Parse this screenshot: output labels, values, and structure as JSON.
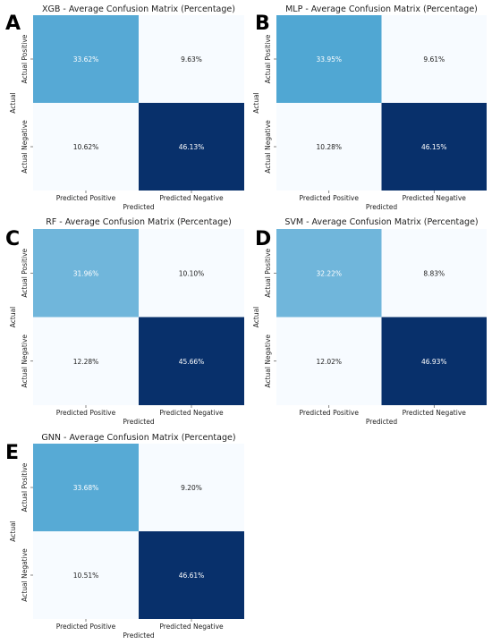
{
  "panels": [
    {
      "letter": "A",
      "chart_data": {
        "type": "heatmap",
        "title": "XGB - Average Confusion Matrix (Percentage)",
        "xlabel": "Predicted",
        "ylabel": "Actual",
        "x_categories": [
          "Predicted Positive",
          "Predicted Negative"
        ],
        "y_categories": [
          "Actual Positive",
          "Actual Negative"
        ],
        "values": [
          [
            33.62,
            9.63
          ],
          [
            10.62,
            46.13
          ]
        ],
        "cell_labels": [
          [
            "33.62%",
            "9.63%"
          ],
          [
            "10.62%",
            "46.13%"
          ]
        ]
      }
    },
    {
      "letter": "B",
      "chart_data": {
        "type": "heatmap",
        "title": "MLP - Average Confusion Matrix (Percentage)",
        "xlabel": "Predicted",
        "ylabel": "Actual",
        "x_categories": [
          "Predicted Positive",
          "Predicted Negative"
        ],
        "y_categories": [
          "Actual Positive",
          "Actual Negative"
        ],
        "values": [
          [
            33.95,
            9.61
          ],
          [
            10.28,
            46.15
          ]
        ],
        "cell_labels": [
          [
            "33.95%",
            "9.61%"
          ],
          [
            "10.28%",
            "46.15%"
          ]
        ]
      }
    },
    {
      "letter": "C",
      "chart_data": {
        "type": "heatmap",
        "title": "RF - Average Confusion Matrix (Percentage)",
        "xlabel": "Predicted",
        "ylabel": "Actual",
        "x_categories": [
          "Predicted Positive",
          "Predicted Negative"
        ],
        "y_categories": [
          "Actual Positive",
          "Actual Negative"
        ],
        "values": [
          [
            31.96,
            10.1
          ],
          [
            12.28,
            45.66
          ]
        ],
        "cell_labels": [
          [
            "31.96%",
            "10.10%"
          ],
          [
            "12.28%",
            "45.66%"
          ]
        ]
      }
    },
    {
      "letter": "D",
      "chart_data": {
        "type": "heatmap",
        "title": "SVM - Average Confusion Matrix (Percentage)",
        "xlabel": "Predicted",
        "ylabel": "Actual",
        "x_categories": [
          "Predicted Positive",
          "Predicted Negative"
        ],
        "y_categories": [
          "Actual Positive",
          "Actual Negative"
        ],
        "values": [
          [
            32.22,
            8.83
          ],
          [
            12.02,
            46.93
          ]
        ],
        "cell_labels": [
          [
            "32.22%",
            "8.83%"
          ],
          [
            "12.02%",
            "46.93%"
          ]
        ]
      }
    },
    {
      "letter": "E",
      "chart_data": {
        "type": "heatmap",
        "title": "GNN - Average Confusion Matrix (Percentage)",
        "xlabel": "Predicted",
        "ylabel": "Actual",
        "x_categories": [
          "Predicted Positive",
          "Predicted Negative"
        ],
        "y_categories": [
          "Actual Positive",
          "Actual Negative"
        ],
        "values": [
          [
            33.68,
            9.2
          ],
          [
            10.51,
            46.61
          ]
        ],
        "cell_labels": [
          [
            "33.68%",
            "9.20%"
          ],
          [
            "10.51%",
            "46.61%"
          ]
        ]
      }
    }
  ],
  "colormap": {
    "name": "Blues",
    "low": "#f7fbff",
    "mid": "#d5e5f4",
    "high_mid": "#0a86c2",
    "high": "#08306b"
  }
}
